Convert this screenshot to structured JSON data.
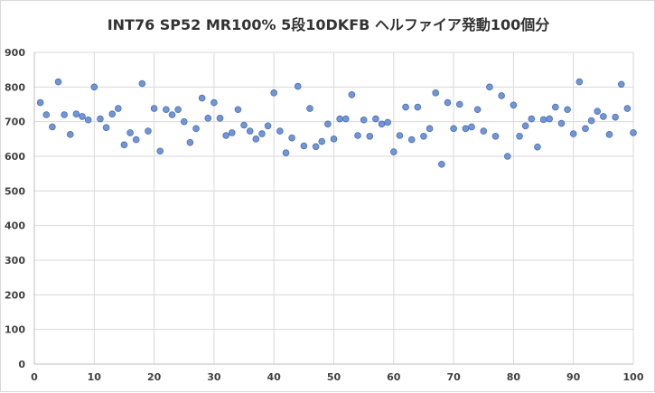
{
  "chart_data": {
    "type": "scatter",
    "title": "INT76 SP52 MR100% 5段10DKFB ヘルファイア発動100個分",
    "xlabel": "",
    "ylabel": "",
    "xlim": [
      0,
      100
    ],
    "ylim": [
      0,
      900
    ],
    "x_ticks": [
      0,
      10,
      20,
      30,
      40,
      50,
      60,
      70,
      80,
      90,
      100
    ],
    "y_ticks": [
      0,
      100,
      200,
      300,
      400,
      500,
      600,
      700,
      800,
      900
    ],
    "grid": "vertical and horizontal",
    "legend": "none",
    "marker_color": "#7295d6",
    "marker_edge": "#4a6fb5",
    "x": [
      1,
      2,
      3,
      4,
      5,
      6,
      7,
      8,
      9,
      10,
      11,
      12,
      13,
      14,
      15,
      16,
      17,
      18,
      19,
      20,
      21,
      22,
      23,
      24,
      25,
      26,
      27,
      28,
      29,
      30,
      31,
      32,
      33,
      34,
      35,
      36,
      37,
      38,
      39,
      40,
      41,
      42,
      43,
      44,
      45,
      46,
      47,
      48,
      49,
      50,
      51,
      52,
      53,
      54,
      55,
      56,
      57,
      58,
      59,
      60,
      61,
      62,
      63,
      64,
      65,
      66,
      67,
      68,
      69,
      70,
      71,
      72,
      73,
      74,
      75,
      76,
      77,
      78,
      79,
      80,
      81,
      82,
      83,
      84,
      85,
      86,
      87,
      88,
      89,
      90,
      91,
      92,
      93,
      94,
      95,
      96,
      97,
      98,
      99,
      100
    ],
    "y": [
      755,
      720,
      685,
      815,
      720,
      663,
      722,
      715,
      705,
      800,
      708,
      683,
      722,
      738,
      633,
      668,
      648,
      810,
      673,
      738,
      615,
      735,
      720,
      735,
      700,
      640,
      680,
      768,
      710,
      755,
      710,
      660,
      668,
      735,
      690,
      673,
      650,
      665,
      688,
      783,
      673,
      610,
      653,
      802,
      630,
      738,
      628,
      643,
      693,
      650,
      708,
      708,
      778,
      660,
      705,
      658,
      708,
      693,
      698,
      613,
      660,
      742,
      648,
      742,
      658,
      680,
      783,
      577,
      755,
      680,
      750,
      680,
      685,
      735,
      673,
      800,
      658,
      775,
      600,
      748,
      658,
      688,
      708,
      627,
      706,
      708,
      742,
      695,
      735,
      665,
      815,
      680,
      703,
      730,
      715,
      663,
      713,
      808,
      738,
      668
    ]
  }
}
